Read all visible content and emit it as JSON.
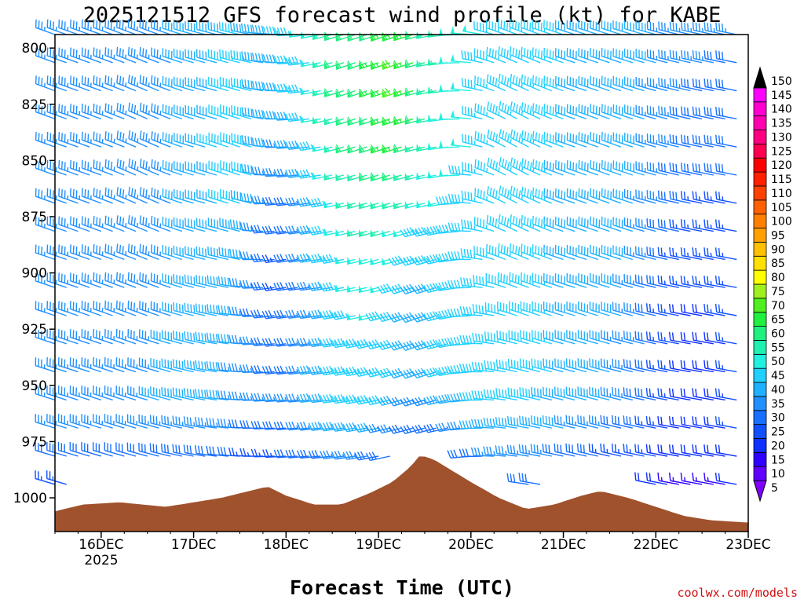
{
  "chart_data": {
    "type": "wind-barb-time-height",
    "title": "2025121512 GFS forecast wind profile (kt) for KABE",
    "xlabel": "Forecast Time (UTC)",
    "credit": "coolwx.com/models",
    "y_axis": {
      "label": "",
      "ticks": [
        "800",
        "825",
        "850",
        "875",
        "900",
        "925",
        "950",
        "975",
        "1000"
      ],
      "range": [
        794,
        1015
      ]
    },
    "x_axis": {
      "ticks": [
        "16DEC",
        "17DEC",
        "18DEC",
        "19DEC",
        "20DEC",
        "21DEC",
        "22DEC",
        "23DEC"
      ],
      "year_label": "2025",
      "range_days": [
        15.5,
        23.0
      ]
    },
    "colorbar": {
      "labels": [
        "5",
        "10",
        "15",
        "20",
        "25",
        "30",
        "35",
        "40",
        "45",
        "50",
        "55",
        "60",
        "65",
        "70",
        "75",
        "80",
        "85",
        "90",
        "95",
        "100",
        "105",
        "110",
        "115",
        "120",
        "125",
        "130",
        "135",
        "140",
        "145",
        "150"
      ],
      "colors": [
        "#8000ff",
        "#6000ff",
        "#3000ff",
        "#1030ff",
        "#1050ff",
        "#1870ff",
        "#2090ff",
        "#20b0ff",
        "#20d0ff",
        "#20f0e0",
        "#20f0b0",
        "#20f080",
        "#20f040",
        "#50f020",
        "#a0f020",
        "#ffff00",
        "#ffe000",
        "#ffc000",
        "#ffa000",
        "#ff8000",
        "#ff6000",
        "#ff4000",
        "#ff2000",
        "#ff0000",
        "#ff0050",
        "#ff0080",
        "#ff00b0",
        "#ff00d0",
        "#ff00ff",
        "#ff40ff"
      ]
    },
    "series": [
      {
        "time_day": 15.5,
        "p": 812,
        "kt": 35,
        "dir": 290
      },
      {
        "time_day": 16.0,
        "p": 825,
        "kt": 35,
        "dir": 290
      },
      {
        "time_day": 16.5,
        "p": 850,
        "kt": 35,
        "dir": 295
      },
      {
        "time_day": 17.5,
        "p": 850,
        "kt": 45,
        "dir": 290
      },
      {
        "time_day": 18.0,
        "p": 900,
        "kt": 25,
        "dir": 260
      },
      {
        "time_day": 18.8,
        "p": 812,
        "kt": 60,
        "dir": 250
      },
      {
        "time_day": 19.2,
        "p": 812,
        "kt": 70,
        "dir": 250
      },
      {
        "time_day": 19.5,
        "p": 925,
        "kt": 40,
        "dir": 250
      },
      {
        "time_day": 20.5,
        "p": 850,
        "kt": 45,
        "dir": 300
      },
      {
        "time_day": 21.5,
        "p": 850,
        "kt": 40,
        "dir": 290
      },
      {
        "time_day": 22.5,
        "p": 950,
        "kt": 20,
        "dir": 280
      }
    ],
    "terrain_profile": [
      {
        "time_day": 15.5,
        "p": 1006
      },
      {
        "time_day": 15.8,
        "p": 1003
      },
      {
        "time_day": 16.2,
        "p": 1002
      },
      {
        "time_day": 16.7,
        "p": 1004
      },
      {
        "time_day": 17.0,
        "p": 1002
      },
      {
        "time_day": 17.3,
        "p": 1000
      },
      {
        "time_day": 17.6,
        "p": 997
      },
      {
        "time_day": 17.8,
        "p": 995
      },
      {
        "time_day": 18.0,
        "p": 999
      },
      {
        "time_day": 18.3,
        "p": 1003
      },
      {
        "time_day": 18.6,
        "p": 1003
      },
      {
        "time_day": 18.9,
        "p": 998
      },
      {
        "time_day": 19.15,
        "p": 993
      },
      {
        "time_day": 19.35,
        "p": 986
      },
      {
        "time_day": 19.45,
        "p": 981
      },
      {
        "time_day": 19.6,
        "p": 983
      },
      {
        "time_day": 19.8,
        "p": 988
      },
      {
        "time_day": 20.0,
        "p": 993
      },
      {
        "time_day": 20.3,
        "p": 1000
      },
      {
        "time_day": 20.6,
        "p": 1005
      },
      {
        "time_day": 20.9,
        "p": 1003
      },
      {
        "time_day": 21.2,
        "p": 999
      },
      {
        "time_day": 21.4,
        "p": 997
      },
      {
        "time_day": 21.7,
        "p": 1000
      },
      {
        "time_day": 22.0,
        "p": 1004
      },
      {
        "time_day": 22.3,
        "p": 1008
      },
      {
        "time_day": 22.6,
        "p": 1010
      },
      {
        "time_day": 23.0,
        "p": 1011
      }
    ],
    "grid": false,
    "legend": "right"
  }
}
